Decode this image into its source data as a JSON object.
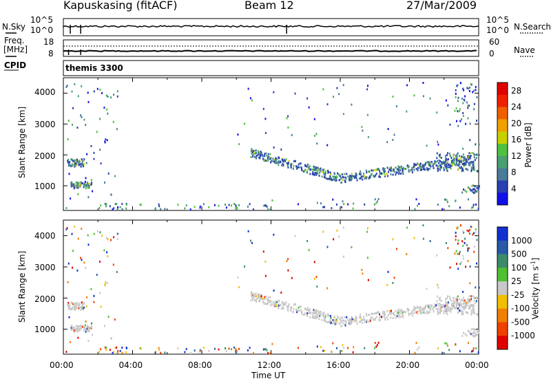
{
  "header": {
    "station": "Kapuskasing (fitACF)",
    "beam": "Beam 12",
    "date": "27/Mar/2009"
  },
  "panels": {
    "nsky": {
      "left_label": "N.Sky",
      "right_label": "N.Search",
      "left_ticks": [
        "10^5",
        "10^0"
      ],
      "right_ticks": [
        "10^5",
        "10^0"
      ]
    },
    "freq": {
      "left_label_line1": "Freq.",
      "left_label_line2": "[MHz]",
      "right_label": "Nave",
      "left_ticks": [
        "18",
        "8"
      ],
      "right_ticks": [
        "60",
        "0"
      ]
    },
    "cpid": {
      "label": "CPID",
      "value": "themis 3300"
    }
  },
  "chart_data": [
    {
      "type": "heatmap",
      "name": "power",
      "ylabel": "Slant Range [km]",
      "yticks": [
        1000,
        2000,
        3000,
        4000
      ],
      "ylim": [
        200,
        4500
      ],
      "colorbar_label": "Power [dB]",
      "colorbar_ticks": [
        4,
        8,
        12,
        16,
        20,
        24,
        28
      ],
      "colorbar_range": [
        0,
        30
      ],
      "colors": [
        "#1010e8",
        "#2840b0",
        "#4a7c9a",
        "#4aa070",
        "#50c040",
        "#c8d000",
        "#f0a000",
        "#f06000",
        "#f02000",
        "#e00000"
      ],
      "x_ticks": [
        "00:00",
        "04:00",
        "08:00",
        "12:00",
        "16:00",
        "20:00",
        "00:00"
      ],
      "xlim_hours": [
        0,
        24
      ]
    },
    {
      "type": "heatmap",
      "name": "velocity",
      "ylabel": "Slant Range [km]",
      "yticks": [
        1000,
        2000,
        3000,
        4000
      ],
      "ylim": [
        200,
        4500
      ],
      "colorbar_label": "Velocity [m s^-1]",
      "colorbar_ticks": [
        "1000",
        "500",
        "100",
        "25",
        "-25",
        "-100",
        "-500",
        "-1000"
      ],
      "colors": [
        "#1030d0",
        "#2a58a8",
        "#3c8c6c",
        "#50c030",
        "#c8c8c8",
        "#f0c000",
        "#f08000",
        "#f04000",
        "#e00000"
      ],
      "xlabel": "Time UT",
      "x_ticks": [
        "00:00",
        "04:00",
        "08:00",
        "12:00",
        "16:00",
        "20:00",
        "00:00"
      ],
      "xlim_hours": [
        0,
        24
      ]
    }
  ]
}
